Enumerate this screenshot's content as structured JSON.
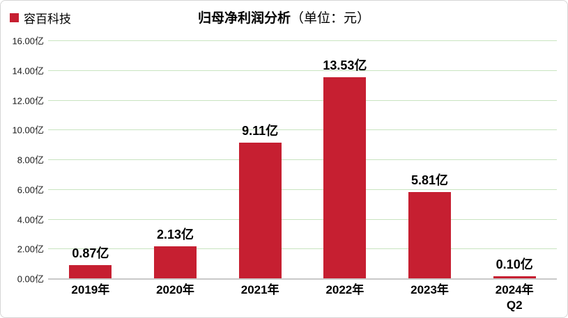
{
  "legend": {
    "label": "容百科技"
  },
  "title": {
    "main": "归母净利润分析",
    "unit": "（单位：元）"
  },
  "chart_data": {
    "type": "bar",
    "title": "归母净利润分析（单位：元）",
    "series_name": "容百科技",
    "categories": [
      "2019年",
      "2020年",
      "2021年",
      "2022年",
      "2023年",
      "2024年\nQ2"
    ],
    "values": [
      0.87,
      2.13,
      9.11,
      13.53,
      5.81,
      0.1
    ],
    "value_labels": [
      "0.87亿",
      "2.13亿",
      "9.11亿",
      "13.53亿",
      "5.81亿",
      "0.10亿"
    ],
    "y_ticks_top_to_bottom": [
      "16.00亿",
      "14.00亿",
      "12.00亿",
      "10.00亿",
      "8.00亿",
      "6.00亿",
      "4.00亿",
      "2.00亿",
      "0.00亿"
    ],
    "ylim": [
      0,
      16
    ],
    "ytick_step": 2,
    "grid": true,
    "legend_position": "top-left"
  },
  "colors": {
    "bar": "#c61f31",
    "gridline": "#c8e4c0",
    "axis_line": "#c9c9c9",
    "border": "#d6d6d6",
    "text": "#000000"
  }
}
